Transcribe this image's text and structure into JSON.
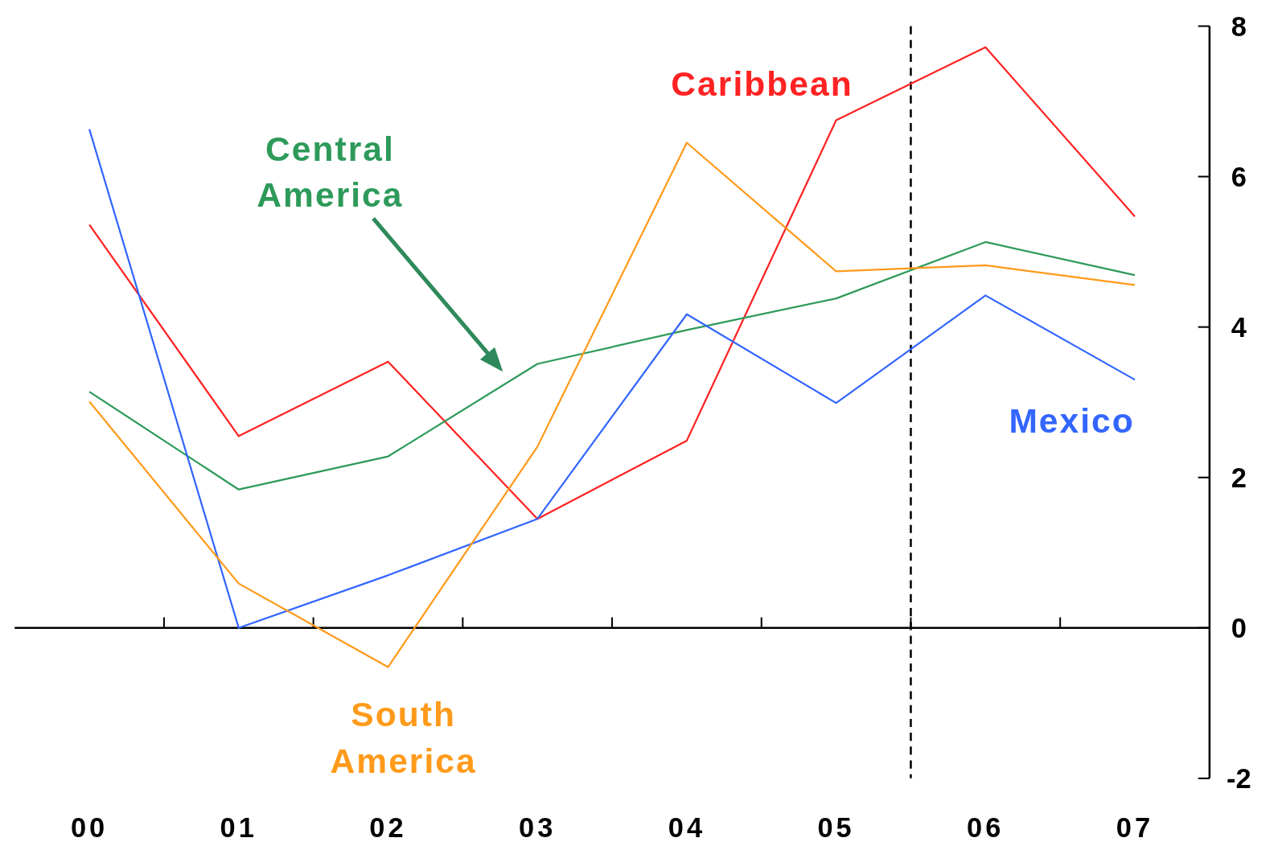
{
  "chart_data": {
    "type": "line",
    "x": [
      0,
      1,
      2,
      3,
      4,
      5,
      6,
      7
    ],
    "series": [
      {
        "name": "Caribbean",
        "color": "#ff2222",
        "values": [
          5.36,
          2.55,
          3.54,
          1.45,
          2.49,
          6.75,
          7.72,
          5.47
        ]
      },
      {
        "name": "Central America",
        "color": "#2e9a5a",
        "values": [
          3.14,
          1.84,
          2.28,
          3.51,
          3.96,
          4.38,
          5.13,
          4.69
        ]
      },
      {
        "name": "Mexico",
        "color": "#3366ff",
        "values": [
          6.63,
          0,
          0.7,
          1.45,
          4.17,
          2.99,
          4.42,
          3.3
        ]
      },
      {
        "name": "South America",
        "color": "#ff9a1a",
        "values": [
          3.01,
          0.59,
          -0.52,
          2.41,
          6.45,
          4.74,
          4.82,
          4.56
        ]
      }
    ],
    "xlim": [
      -0.5,
      7.5
    ],
    "xticks": [
      {
        "value": 0,
        "label": "00"
      },
      {
        "value": 1,
        "label": "01"
      },
      {
        "value": 2,
        "label": "02"
      },
      {
        "value": 3,
        "label": "03"
      },
      {
        "value": 4,
        "label": "04"
      },
      {
        "value": 5,
        "label": "05"
      },
      {
        "value": 6,
        "label": "06"
      },
      {
        "value": 7,
        "label": "07"
      },
      {
        "value": 0.5,
        "label": null
      },
      {
        "value": 1.5,
        "label": null
      },
      {
        "value": 2.5,
        "label": null
      },
      {
        "value": 3.5,
        "label": null
      },
      {
        "value": 4.5,
        "label": null
      },
      {
        "value": 5.5,
        "label": null
      },
      {
        "value": 6.5,
        "label": null
      }
    ],
    "ylim": [
      -2,
      8
    ],
    "yticks": [
      -2,
      0,
      2,
      4,
      6,
      8
    ],
    "grid": false,
    "legend": false,
    "marker": "none",
    "line_style": "solid",
    "ref_lines": [
      {
        "axis": "x",
        "value": 5.5,
        "line_style": "dashed",
        "color": "#000000"
      }
    ]
  }
}
